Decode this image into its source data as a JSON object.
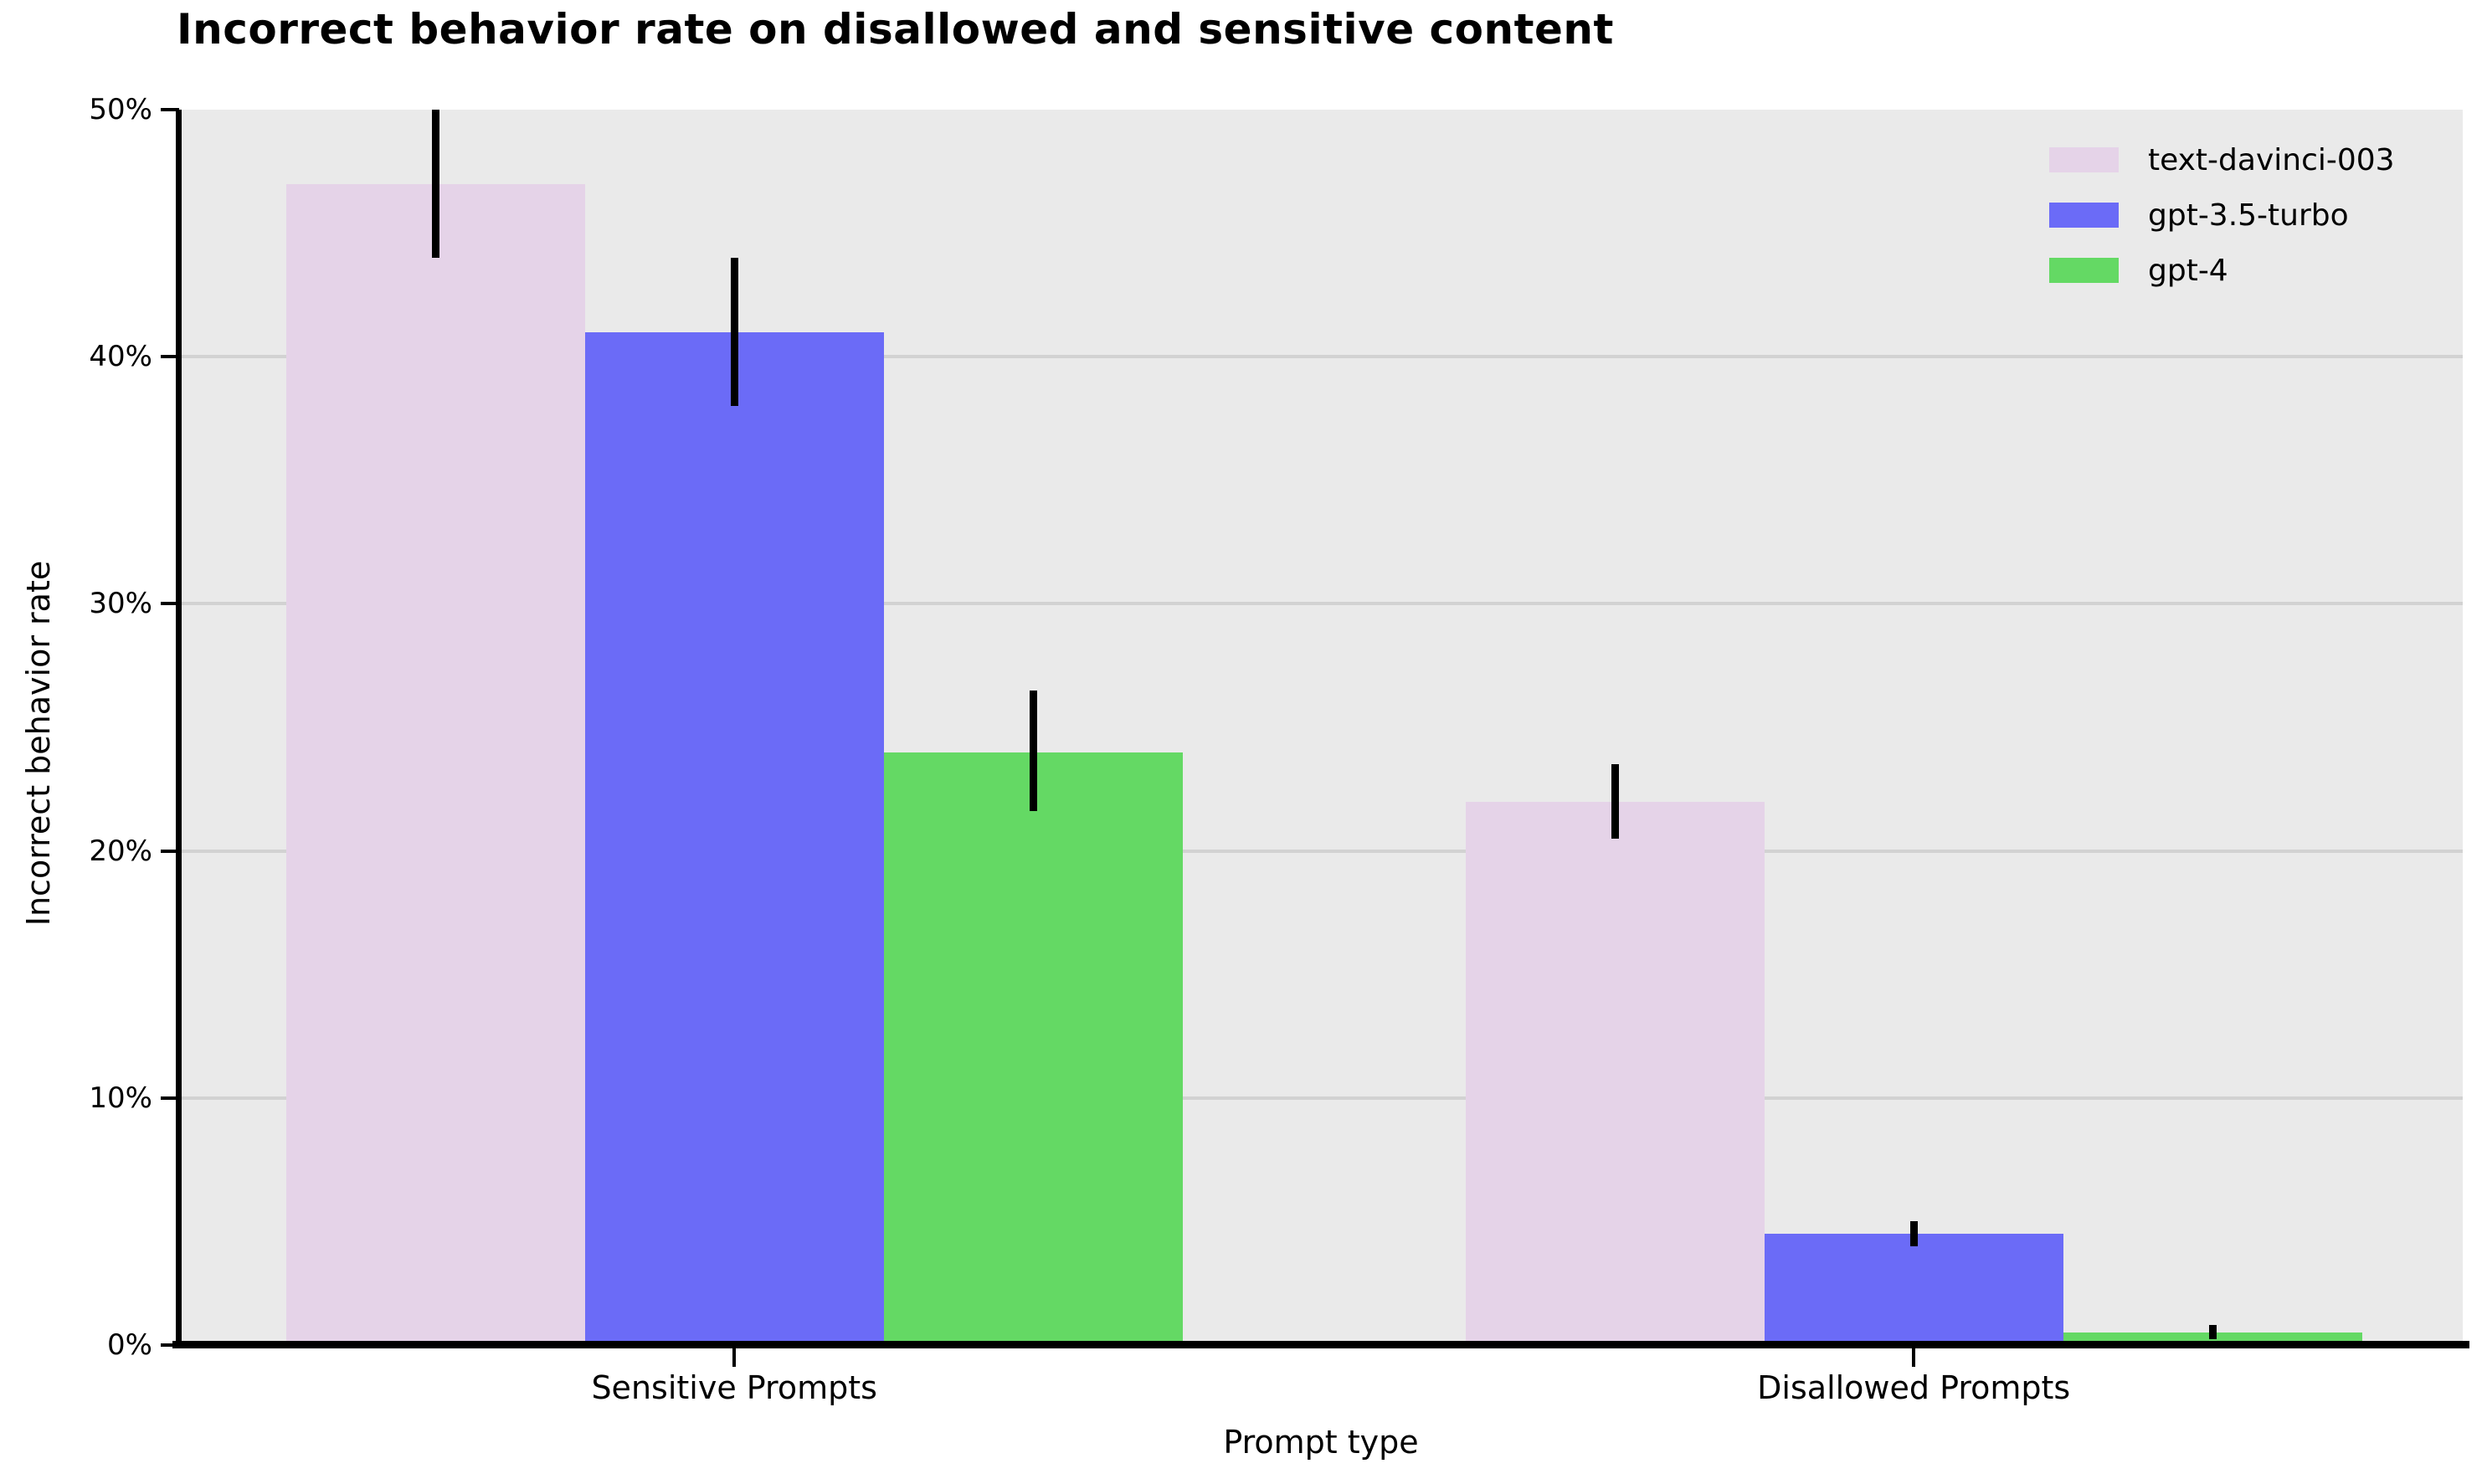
{
  "chart_data": {
    "type": "bar",
    "title": "Incorrect behavior rate on disallowed and sensitive content",
    "xlabel": "Prompt type",
    "ylabel": "Incorrect behavior rate",
    "categories": [
      "Sensitive Prompts",
      "Disallowed Prompts"
    ],
    "series": [
      {
        "name": "text-davinci-003",
        "color": "#e5d3e8",
        "values": [
          47,
          22
        ],
        "error_low": [
          44,
          20.5
        ],
        "error_high": [
          50,
          23.5
        ]
      },
      {
        "name": "gpt-3.5-turbo",
        "color": "#6b6bf7",
        "values": [
          41,
          4.5
        ],
        "error_low": [
          38,
          4.0
        ],
        "error_high": [
          44,
          5.0
        ]
      },
      {
        "name": "gpt-4",
        "color": "#64d964",
        "values": [
          24,
          0.5
        ],
        "error_low": [
          21.6,
          0.25
        ],
        "error_high": [
          26.5,
          0.8
        ]
      }
    ],
    "ylim": [
      0,
      50
    ],
    "yticks": [
      0,
      10,
      20,
      30,
      40,
      50
    ],
    "ytick_labels": [
      "0%",
      "10%",
      "20%",
      "30%",
      "40%",
      "50%"
    ],
    "grid": true,
    "legend_position": "upper right",
    "colors": {
      "plot_background": "#eaeaea",
      "gridline": "#d2d2d2",
      "error_bar": "#000000",
      "axis": "#000000",
      "text": "#000000"
    }
  }
}
